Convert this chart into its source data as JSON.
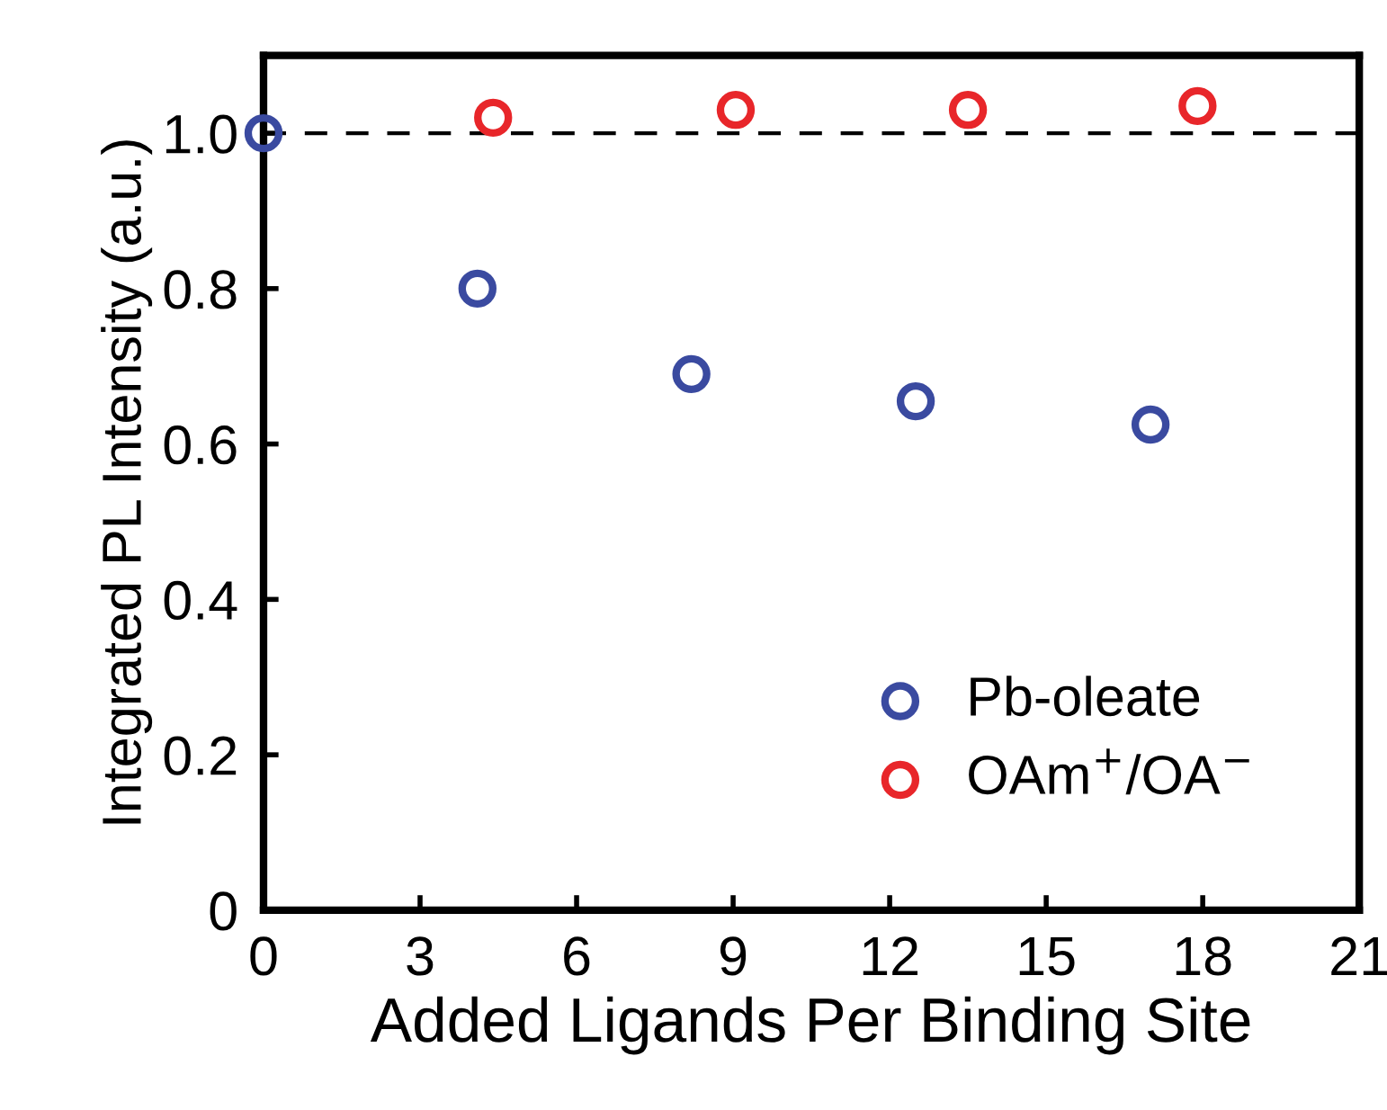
{
  "chart_data": {
    "type": "scatter",
    "xlabel": "Added Ligands Per Binding Site",
    "ylabel": "Integrated PL Intensity (a.u.)",
    "xlim": [
      0,
      21
    ],
    "xticks": [
      0,
      3,
      6,
      9,
      12,
      15,
      18,
      21
    ],
    "ylim": [
      0,
      1.1
    ],
    "yticks": [
      0,
      0.2,
      0.4,
      0.6,
      0.8,
      {
        "value": 1.0,
        "label": "1.0"
      }
    ],
    "series": [
      {
        "name": "Pb-oleate",
        "color": "#3a4aa0",
        "x": [
          0,
          4.1,
          8.2,
          12.5,
          17.0
        ],
        "values": [
          1.0,
          0.8,
          0.69,
          0.655,
          0.625
        ]
      },
      {
        "name": "OAm$^{+}$/OA$^{−}$",
        "color": "#e8262a",
        "x": [
          4.4,
          9.05,
          13.5,
          17.9
        ],
        "values": [
          1.02,
          1.03,
          1.03,
          1.035
        ]
      }
    ],
    "ref_lines": [
      {
        "axis": "y",
        "value": 1.0,
        "color": "#000000",
        "line_style": "dashed"
      }
    ],
    "marker": "circle",
    "grid": false,
    "legend": "bottom right"
  }
}
